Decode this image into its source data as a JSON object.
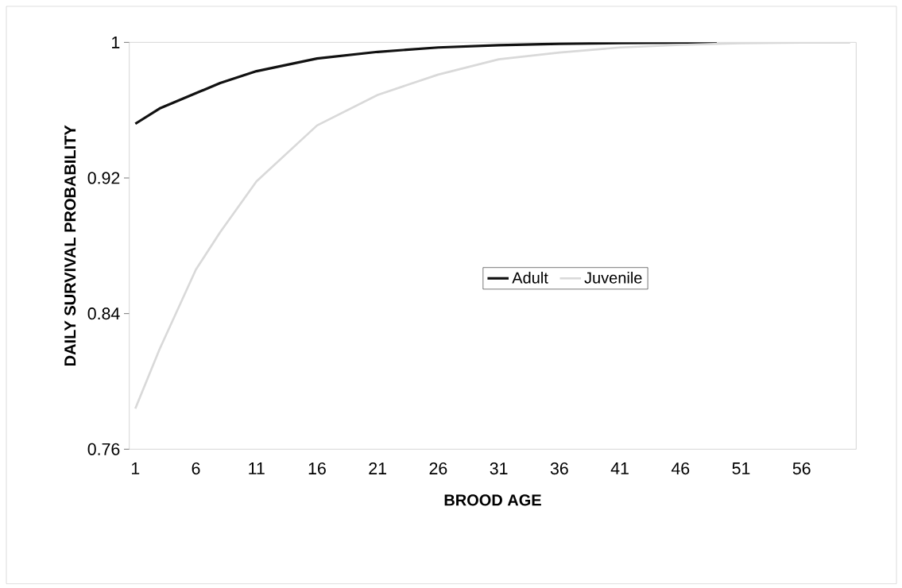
{
  "chart_data": {
    "type": "line",
    "xlabel": "BROOD AGE",
    "ylabel": "DAILY SURVIVAL PROBABILITY",
    "xlim": [
      0.5,
      60.5
    ],
    "xticks": [
      1,
      6,
      11,
      16,
      21,
      26,
      31,
      36,
      41,
      46,
      51,
      56
    ],
    "ylim": [
      0.76,
      1
    ],
    "yticks": [
      0.76,
      0.84,
      0.92,
      1
    ],
    "legend": "center",
    "grid": false,
    "marker": "none",
    "line_style": "solid",
    "series": [
      {
        "name": "Adult",
        "color": "#111111",
        "x": [
          1,
          3,
          6,
          8,
          11,
          16,
          21,
          26,
          31,
          36,
          41,
          46,
          49
        ],
        "values": [
          0.952,
          0.961,
          0.97,
          0.976,
          0.983,
          0.9905,
          0.9944,
          0.997,
          0.9983,
          0.9992,
          0.9996,
          0.9998,
          0.9999
        ]
      },
      {
        "name": "Juvenile",
        "color": "#d9d9d9",
        "x": [
          1,
          3,
          6,
          8,
          11,
          16,
          21,
          26,
          31,
          36,
          41,
          46,
          51,
          56,
          60
        ],
        "values": [
          0.784,
          0.819,
          0.866,
          0.888,
          0.918,
          0.951,
          0.969,
          0.981,
          0.99,
          0.994,
          0.997,
          0.9985,
          0.9995,
          0.9998,
          0.9999
        ]
      }
    ]
  }
}
